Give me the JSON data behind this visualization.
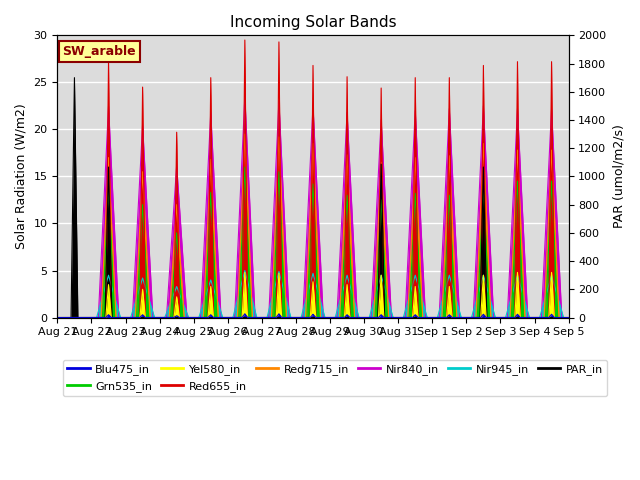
{
  "title": "Incoming Solar Bands",
  "ylabel_left": "Solar Radiation (W/m2)",
  "ylabel_right": "PAR (umol/m2/s)",
  "ylim_left": [
    0,
    30
  ],
  "ylim_right": [
    0,
    2000
  ],
  "background_color": "#dcdcdc",
  "annotation_text": "SW_arable",
  "annotation_color": "#8b0000",
  "annotation_bg": "#ffff99",
  "series_order": [
    "nir840",
    "redg",
    "red",
    "grn",
    "yel",
    "nir945",
    "blu",
    "par"
  ],
  "colors": {
    "blu": "#0000dd",
    "grn": "#00cc00",
    "yel": "#ffff00",
    "red": "#dd0000",
    "redg": "#ff8800",
    "nir840": "#cc00cc",
    "nir945": "#00cccc",
    "par": "#000000"
  },
  "widths": {
    "blu": 0.08,
    "grn": 0.18,
    "yel": 0.08,
    "red": 0.08,
    "redg": 0.22,
    "nir840": 0.3,
    "nir945": 0.35,
    "par": 0.1
  },
  "peaks": [
    {
      "day": 0,
      "red": 0,
      "grn": 0,
      "yel": 0,
      "blu": 0,
      "redg": 0,
      "nir840": 0,
      "nir945": 0,
      "par": 25.5
    },
    {
      "day": 1,
      "red": 27.2,
      "grn": 14.0,
      "yel": 3.5,
      "blu": 0.3,
      "redg": 17.0,
      "nir840": 22.5,
      "nir945": 4.5,
      "par": 16.0
    },
    {
      "day": 2,
      "red": 24.5,
      "grn": 12.0,
      "yel": 3.0,
      "blu": 0.3,
      "redg": 15.5,
      "nir840": 20.5,
      "nir945": 4.2,
      "par": 0
    },
    {
      "day": 3,
      "red": 19.7,
      "grn": 9.0,
      "yel": 2.2,
      "blu": 0.2,
      "redg": 12.0,
      "nir840": 16.2,
      "nir945": 3.3,
      "par": 0
    },
    {
      "day": 4,
      "red": 25.5,
      "grn": 13.3,
      "yel": 3.3,
      "blu": 0.3,
      "redg": 16.8,
      "nir840": 21.8,
      "nir945": 4.0,
      "par": 0
    },
    {
      "day": 5,
      "red": 29.5,
      "grn": 16.0,
      "yel": 4.8,
      "blu": 0.4,
      "redg": 19.5,
      "nir840": 23.5,
      "nir945": 5.0,
      "par": 0
    },
    {
      "day": 6,
      "red": 29.3,
      "grn": 15.5,
      "yel": 4.7,
      "blu": 0.4,
      "redg": 19.2,
      "nir840": 23.0,
      "nir945": 4.9,
      "par": 0
    },
    {
      "day": 7,
      "red": 26.8,
      "grn": 14.2,
      "yel": 3.8,
      "blu": 0.35,
      "redg": 18.5,
      "nir840": 22.5,
      "nir945": 4.7,
      "par": 0
    },
    {
      "day": 8,
      "red": 25.6,
      "grn": 13.0,
      "yel": 3.5,
      "blu": 0.3,
      "redg": 17.3,
      "nir840": 21.8,
      "nir945": 4.5,
      "par": 0
    },
    {
      "day": 9,
      "red": 24.4,
      "grn": 12.5,
      "yel": 4.5,
      "blu": 0.3,
      "redg": 16.5,
      "nir840": 21.0,
      "nir945": 4.5,
      "par": 16.3
    },
    {
      "day": 10,
      "red": 25.5,
      "grn": 13.2,
      "yel": 3.3,
      "blu": 0.3,
      "redg": 17.0,
      "nir840": 22.0,
      "nir945": 4.5,
      "par": 0
    },
    {
      "day": 11,
      "red": 25.5,
      "grn": 13.0,
      "yel": 3.3,
      "blu": 0.3,
      "redg": 17.2,
      "nir840": 22.2,
      "nir945": 4.5,
      "par": 0
    },
    {
      "day": 12,
      "red": 26.8,
      "grn": 14.2,
      "yel": 4.5,
      "blu": 0.35,
      "redg": 18.5,
      "nir840": 22.5,
      "nir945": 4.5,
      "par": 16.0
    },
    {
      "day": 13,
      "red": 27.2,
      "grn": 14.5,
      "yel": 4.8,
      "blu": 0.35,
      "redg": 17.8,
      "nir840": 22.2,
      "nir945": 4.5,
      "par": 0
    },
    {
      "day": 14,
      "red": 27.2,
      "grn": 14.5,
      "yel": 4.8,
      "blu": 0.35,
      "redg": 17.8,
      "nir840": 22.2,
      "nir945": 4.5,
      "par": 0
    }
  ],
  "xtick_labels": [
    "Aug 21",
    "Aug 22",
    "Aug 23",
    "Aug 24",
    "Aug 25",
    "Aug 26",
    "Aug 27",
    "Aug 28",
    "Aug 29",
    "Aug 30",
    "Aug 31",
    "Sep 1",
    "Sep 2",
    "Sep 3",
    "Sep 4",
    "Sep 5"
  ]
}
